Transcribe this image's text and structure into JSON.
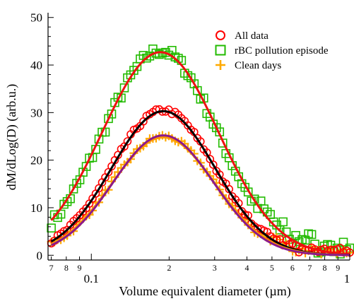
{
  "chart_data": {
    "type": "scatter",
    "xlabel": "Volume equivalent diameter (µm)",
    "ylabel": "dM/dLog(D) (arb.u.)",
    "x_scale": "log",
    "xlim": [
      0.068,
      1.0
    ],
    "ylim": [
      -1,
      51
    ],
    "y_ticks": [
      0,
      10,
      20,
      30,
      40,
      50
    ],
    "x_major_ticks": [
      {
        "value": 0.1,
        "label": "0.1"
      },
      {
        "value": 1.0,
        "label": "1"
      }
    ],
    "x_minor_ticks": [
      {
        "value": 0.07,
        "label": "7"
      },
      {
        "value": 0.08,
        "label": "8"
      },
      {
        "value": 0.09,
        "label": "9"
      },
      {
        "value": 0.2,
        "label": "2"
      },
      {
        "value": 0.3,
        "label": "3"
      },
      {
        "value": 0.4,
        "label": "4"
      },
      {
        "value": 0.5,
        "label": "5"
      },
      {
        "value": 0.6,
        "label": "6"
      },
      {
        "value": 0.7,
        "label": "7"
      },
      {
        "value": 0.8,
        "label": "8"
      },
      {
        "value": 0.9,
        "label": "9"
      }
    ],
    "legend_position": "top-right",
    "series": [
      {
        "name": "All data",
        "marker": "circle",
        "color": "#ff0000",
        "peak_x": 0.19,
        "peak_y": 30.5,
        "sigma_log": 0.2
      },
      {
        "name": "rBC pollution episode",
        "marker": "square",
        "color": "#22bb00",
        "peak_x": 0.185,
        "peak_y": 43.0,
        "sigma_log": 0.22
      },
      {
        "name": "Clean days",
        "marker": "plus",
        "color": "#ffaa00",
        "peak_x": 0.19,
        "peak_y": 25.0,
        "sigma_log": 0.2
      }
    ],
    "fit_curves": [
      {
        "series": "rBC pollution episode",
        "color": "#ee1111",
        "peak_x": 0.185,
        "peak_y": 42.7,
        "sigma_log": 0.225
      },
      {
        "series": "All data",
        "color": "#000000",
        "peak_x": 0.19,
        "peak_y": 30.3,
        "sigma_log": 0.2
      },
      {
        "series": "Clean days",
        "color": "#ff9900",
        "peak_x": 0.19,
        "peak_y": 24.8,
        "sigma_log": 0.2
      },
      {
        "series": "Clean days",
        "color": "#8b1a8b",
        "peak_x": 0.19,
        "peak_y": 25.2,
        "sigma_log": 0.195
      }
    ]
  }
}
